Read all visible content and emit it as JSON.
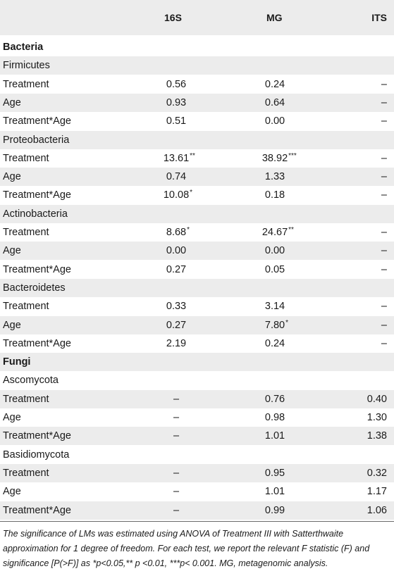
{
  "columns": [
    "",
    "16S",
    "MG",
    "ITS"
  ],
  "rows": [
    {
      "type": "section",
      "label": "Bacteria"
    },
    {
      "type": "group",
      "label": "Firmicutes"
    },
    {
      "type": "data",
      "label": "Treatment",
      "s16": {
        "v": "0.56",
        "sig": ""
      },
      "mg": {
        "v": "0.24",
        "sig": ""
      },
      "its": {
        "v": "–",
        "sig": ""
      }
    },
    {
      "type": "data",
      "label": "Age",
      "s16": {
        "v": "0.93",
        "sig": ""
      },
      "mg": {
        "v": "0.64",
        "sig": ""
      },
      "its": {
        "v": "–",
        "sig": ""
      }
    },
    {
      "type": "data",
      "label": "Treatment*Age",
      "s16": {
        "v": "0.51",
        "sig": ""
      },
      "mg": {
        "v": "0.00",
        "sig": ""
      },
      "its": {
        "v": "–",
        "sig": ""
      }
    },
    {
      "type": "group",
      "label": "Proteobacteria"
    },
    {
      "type": "data",
      "label": "Treatment",
      "s16": {
        "v": "13.61",
        "sig": "**"
      },
      "mg": {
        "v": "38.92",
        "sig": "***"
      },
      "its": {
        "v": "–",
        "sig": ""
      }
    },
    {
      "type": "data",
      "label": "Age",
      "s16": {
        "v": "0.74",
        "sig": ""
      },
      "mg": {
        "v": "1.33",
        "sig": ""
      },
      "its": {
        "v": "–",
        "sig": ""
      }
    },
    {
      "type": "data",
      "label": "Treatment*Age",
      "s16": {
        "v": "10.08",
        "sig": "*"
      },
      "mg": {
        "v": "0.18",
        "sig": ""
      },
      "its": {
        "v": "–",
        "sig": ""
      }
    },
    {
      "type": "group",
      "label": "Actinobacteria"
    },
    {
      "type": "data",
      "label": "Treatment",
      "s16": {
        "v": "8.68",
        "sig": "*"
      },
      "mg": {
        "v": "24.67",
        "sig": "**"
      },
      "its": {
        "v": "–",
        "sig": ""
      }
    },
    {
      "type": "data",
      "label": "Age",
      "s16": {
        "v": "0.00",
        "sig": ""
      },
      "mg": {
        "v": "0.00",
        "sig": ""
      },
      "its": {
        "v": "–",
        "sig": ""
      }
    },
    {
      "type": "data",
      "label": "Treatment*Age",
      "s16": {
        "v": "0.27",
        "sig": ""
      },
      "mg": {
        "v": "0.05",
        "sig": ""
      },
      "its": {
        "v": "–",
        "sig": ""
      }
    },
    {
      "type": "group",
      "label": "Bacteroidetes"
    },
    {
      "type": "data",
      "label": "Treatment",
      "s16": {
        "v": "0.33",
        "sig": ""
      },
      "mg": {
        "v": "3.14",
        "sig": ""
      },
      "its": {
        "v": "–",
        "sig": ""
      }
    },
    {
      "type": "data",
      "label": "Age",
      "s16": {
        "v": "0.27",
        "sig": ""
      },
      "mg": {
        "v": "7.80",
        "sig": "*"
      },
      "its": {
        "v": "–",
        "sig": ""
      }
    },
    {
      "type": "data",
      "label": "Treatment*Age",
      "s16": {
        "v": "2.19",
        "sig": ""
      },
      "mg": {
        "v": "0.24",
        "sig": ""
      },
      "its": {
        "v": "–",
        "sig": ""
      }
    },
    {
      "type": "section",
      "label": "Fungi"
    },
    {
      "type": "group",
      "label": "Ascomycota"
    },
    {
      "type": "data",
      "label": "Treatment",
      "s16": {
        "v": "–",
        "sig": ""
      },
      "mg": {
        "v": "0.76",
        "sig": ""
      },
      "its": {
        "v": "0.40",
        "sig": ""
      }
    },
    {
      "type": "data",
      "label": "Age",
      "s16": {
        "v": "–",
        "sig": ""
      },
      "mg": {
        "v": "0.98",
        "sig": ""
      },
      "its": {
        "v": "1.30",
        "sig": ""
      }
    },
    {
      "type": "data",
      "label": "Treatment*Age",
      "s16": {
        "v": "–",
        "sig": ""
      },
      "mg": {
        "v": "1.01",
        "sig": ""
      },
      "its": {
        "v": "1.38",
        "sig": ""
      }
    },
    {
      "type": "group",
      "label": "Basidiomycota"
    },
    {
      "type": "data",
      "label": "Treatment",
      "s16": {
        "v": "–",
        "sig": ""
      },
      "mg": {
        "v": "0.95",
        "sig": ""
      },
      "its": {
        "v": "0.32",
        "sig": ""
      }
    },
    {
      "type": "data",
      "label": "Age",
      "s16": {
        "v": "–",
        "sig": ""
      },
      "mg": {
        "v": "1.01",
        "sig": ""
      },
      "its": {
        "v": "1.17",
        "sig": ""
      }
    },
    {
      "type": "data",
      "label": "Treatment*Age",
      "s16": {
        "v": "–",
        "sig": ""
      },
      "mg": {
        "v": "0.99",
        "sig": ""
      },
      "its": {
        "v": "1.06",
        "sig": ""
      }
    }
  ],
  "footnote": "The significance of LMs was estimated using ANOVA of Treatment III with Satterthwaite approximation for 1 degree of freedom. For each test, we report the relevant F statistic (F) and significance [P(>F)] as *p<0.05,** p <0.01, ***p< 0.001. MG, metagenomic analysis."
}
